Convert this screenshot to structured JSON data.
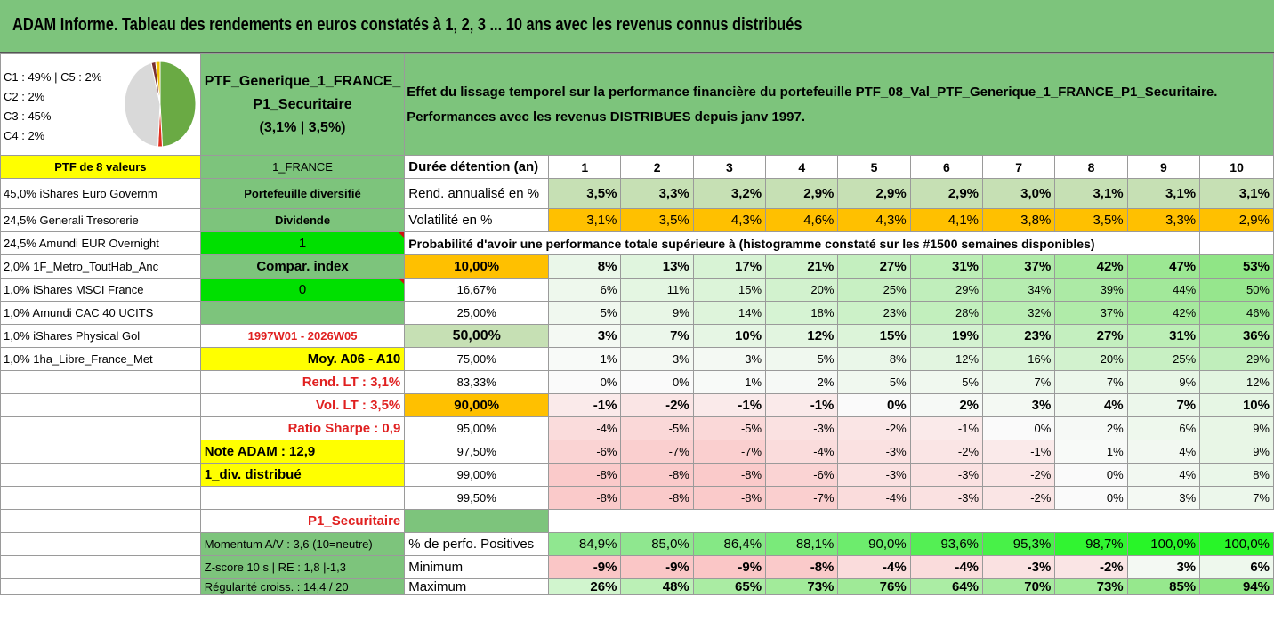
{
  "title": "ADAM Informe. Tableau des rendements en euros constatés à 1, 2, 3 ... 10 ans avec les revenus connus distribués",
  "pie": {
    "legend": [
      "C1 : 49% | C5 : 2%",
      "C2 : 2%",
      "C3 : 45%",
      "C4 : 2%"
    ],
    "slices": [
      {
        "label": "C1",
        "value": 49,
        "color": "#6aaa44"
      },
      {
        "label": "C2",
        "value": 2,
        "color": "#e03020"
      },
      {
        "label": "C3",
        "value": 45,
        "color": "#d9d9d9"
      },
      {
        "label": "C4",
        "value": 2,
        "color": "#7a3030"
      },
      {
        "label": "C5",
        "value": 2,
        "color": "#f0c000"
      }
    ]
  },
  "portfolio": {
    "name_line1": "PTF_Generique_1_FRANCE_",
    "name_line2": "P1_Securitaire",
    "name_line3": "(3,1% | 3,5%)",
    "effect_line1": "Effet du lissage temporel sur la performance financière du portefeuille PTF_08_Val_PTF_Generique_1_FRANCE_P1_Securitaire.",
    "effect_line2": "Performances avec les revenus DISTRIBUES depuis janv 1997."
  },
  "left": {
    "ptf_count": "PTF de 8 valeurs",
    "holdings": [
      "45,0% iShares Euro Governm",
      "24,5% Generali Tresorerie",
      "24,5% Amundi EUR Overnight",
      "2,0% 1F_Metro_ToutHab_Anc",
      "1,0% iShares MSCI France",
      "1,0% Amundi CAC 40 UCITS",
      "1,0% iShares Physical Gol",
      "1,0% 1ha_Libre_France_Met"
    ]
  },
  "mid": {
    "region": "1_FRANCE",
    "diversified": "Portefeuille diversifié",
    "dividend_label": "Dividende",
    "dividend_value": "1",
    "compar_label": "Compar. index",
    "compar_value": "0",
    "period": "1997W01 - 2026W05",
    "moy": "Moy. A06 - A10",
    "rend_lt": "Rend. LT : 3,1%",
    "vol_lt": "Vol. LT : 3,5%",
    "sharpe": "Ratio Sharpe : 0,9",
    "note": "Note ADAM : 12,9",
    "div_distrib": "1_div. distribué",
    "profile": "P1_Securitaire",
    "momentum": "Momentum A/V : 3,6 (10=neutre)",
    "zscore": "Z-score 10 s | RE : 1,8 |-1,3",
    "regularite": "Régularité croiss. : 14,4 / 20"
  },
  "table": {
    "duration_label": "Durée détention (an)",
    "years": [
      "1",
      "2",
      "3",
      "4",
      "5",
      "6",
      "7",
      "8",
      "9",
      "10"
    ],
    "rend_label": "Rend. annualisé en %",
    "rend": [
      "3,5%",
      "3,3%",
      "3,2%",
      "2,9%",
      "2,9%",
      "2,9%",
      "3,0%",
      "3,1%",
      "3,1%",
      "3,1%"
    ],
    "vol_label": "Volatilité en %",
    "vol": [
      "3,1%",
      "3,5%",
      "4,3%",
      "4,6%",
      "4,3%",
      "4,1%",
      "3,8%",
      "3,5%",
      "3,3%",
      "2,9%"
    ],
    "prob_title": "Probabilité d'avoir une performance totale supérieure à (histogramme constaté sur les #1500 semaines disponibles)",
    "prob_rows": [
      {
        "pct": "10,00%",
        "values": [
          "8%",
          "13%",
          "17%",
          "21%",
          "27%",
          "31%",
          "37%",
          "42%",
          "47%",
          "53%"
        ]
      },
      {
        "pct": "16,67%",
        "values": [
          "6%",
          "11%",
          "15%",
          "20%",
          "25%",
          "29%",
          "34%",
          "39%",
          "44%",
          "50%"
        ]
      },
      {
        "pct": "25,00%",
        "values": [
          "5%",
          "9%",
          "14%",
          "18%",
          "23%",
          "28%",
          "32%",
          "37%",
          "42%",
          "46%"
        ]
      },
      {
        "pct": "50,00%",
        "values": [
          "3%",
          "7%",
          "10%",
          "12%",
          "15%",
          "19%",
          "23%",
          "27%",
          "31%",
          "36%"
        ]
      },
      {
        "pct": "75,00%",
        "values": [
          "1%",
          "3%",
          "3%",
          "5%",
          "8%",
          "12%",
          "16%",
          "20%",
          "25%",
          "29%"
        ]
      },
      {
        "pct": "83,33%",
        "values": [
          "0%",
          "0%",
          "1%",
          "2%",
          "5%",
          "5%",
          "7%",
          "7%",
          "9%",
          "12%"
        ]
      },
      {
        "pct": "90,00%",
        "values": [
          "-1%",
          "-2%",
          "-1%",
          "-1%",
          "0%",
          "2%",
          "3%",
          "4%",
          "7%",
          "10%"
        ]
      },
      {
        "pct": "95,00%",
        "values": [
          "-4%",
          "-5%",
          "-5%",
          "-3%",
          "-2%",
          "-1%",
          "0%",
          "2%",
          "6%",
          "9%"
        ]
      },
      {
        "pct": "97,50%",
        "values": [
          "-6%",
          "-7%",
          "-7%",
          "-4%",
          "-3%",
          "-2%",
          "-1%",
          "1%",
          "4%",
          "9%"
        ]
      },
      {
        "pct": "99,00%",
        "values": [
          "-8%",
          "-8%",
          "-8%",
          "-6%",
          "-3%",
          "-3%",
          "-2%",
          "0%",
          "4%",
          "8%"
        ]
      },
      {
        "pct": "99,50%",
        "values": [
          "-8%",
          "-8%",
          "-8%",
          "-7%",
          "-4%",
          "-3%",
          "-2%",
          "0%",
          "3%",
          "7%"
        ]
      }
    ],
    "pos_label": "% de perfo. Positives",
    "pos": [
      "84,9%",
      "85,0%",
      "86,4%",
      "88,1%",
      "90,0%",
      "93,6%",
      "95,3%",
      "98,7%",
      "100,0%",
      "100,0%"
    ],
    "min_label": "Minimum",
    "min": [
      "-9%",
      "-9%",
      "-9%",
      "-8%",
      "-4%",
      "-4%",
      "-3%",
      "-2%",
      "3%",
      "6%"
    ],
    "max_label": "Maximum",
    "max": [
      "26%",
      "48%",
      "65%",
      "73%",
      "76%",
      "64%",
      "70%",
      "73%",
      "85%",
      "94%"
    ]
  }
}
